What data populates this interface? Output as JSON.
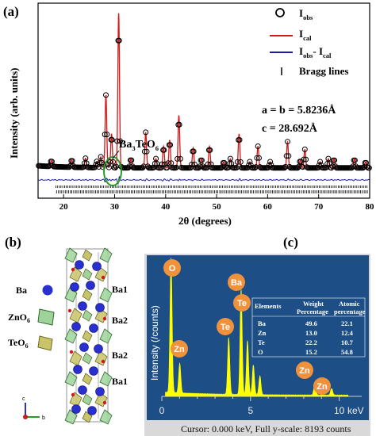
{
  "panels": {
    "a": "(a)",
    "b": "(b)",
    "c": "(c)"
  },
  "colors": {
    "calc": "#d01818",
    "diff": "#1a1aa8",
    "obs": "#000000",
    "edx_bg": "#1d4f86",
    "edx_fill": "#ffff00",
    "badge": "#f0923c"
  },
  "chart_data": [
    {
      "type": "line",
      "xlabel_main": "2θ",
      "xlabel_unit": "(degrees)",
      "ylabel": "Intensity (arb. units)",
      "xlim": [
        15,
        80
      ],
      "xticks": [
        "20",
        "30",
        "40",
        "50",
        "60",
        "70",
        "80"
      ],
      "legend": {
        "obs_main": "I",
        "obs_sub": "obs",
        "cal_main": "I",
        "cal_sub": "cal",
        "diff_main": "I",
        "diff_sub1": "obs",
        "diff_dash": "- I",
        "diff_sub2": "cal",
        "bragg": "Bragg lines"
      },
      "lattice": {
        "ab": "a = b = 5.8236Å",
        "c": "c = 28.692Å"
      },
      "annotation": {
        "base": "Ba",
        "sub1": "3",
        "mid": "TeO",
        "sub2": "6"
      },
      "peaks": [
        {
          "x": 17.6,
          "y": 4
        },
        {
          "x": 21.6,
          "y": 5
        },
        {
          "x": 24.3,
          "y": 6
        },
        {
          "x": 26.5,
          "y": 4
        },
        {
          "x": 27.3,
          "y": 7
        },
        {
          "x": 28.3,
          "y": 47
        },
        {
          "x": 29.4,
          "y": 22
        },
        {
          "x": 30.8,
          "y": 100
        },
        {
          "x": 33.2,
          "y": 6
        },
        {
          "x": 36.1,
          "y": 23
        },
        {
          "x": 38.1,
          "y": 6
        },
        {
          "x": 39.6,
          "y": 14
        },
        {
          "x": 40.8,
          "y": 18
        },
        {
          "x": 42.6,
          "y": 34
        },
        {
          "x": 45.4,
          "y": 13
        },
        {
          "x": 47.0,
          "y": 6
        },
        {
          "x": 48.6,
          "y": 14
        },
        {
          "x": 51.4,
          "y": 4
        },
        {
          "x": 52.7,
          "y": 6
        },
        {
          "x": 54.4,
          "y": 22
        },
        {
          "x": 56.5,
          "y": 4
        },
        {
          "x": 58.1,
          "y": 14
        },
        {
          "x": 60.5,
          "y": 4
        },
        {
          "x": 63.9,
          "y": 17
        },
        {
          "x": 66.4,
          "y": 5
        },
        {
          "x": 67.3,
          "y": 12
        },
        {
          "x": 70.3,
          "y": 4
        },
        {
          "x": 71.9,
          "y": 6
        },
        {
          "x": 73.0,
          "y": 6
        },
        {
          "x": 77.0,
          "y": 6
        },
        {
          "x": 79.2,
          "y": 4
        }
      ]
    },
    {
      "type": "area",
      "ylabel": "Intensity (/counts)",
      "unit": "keV",
      "xlim": [
        0,
        11
      ],
      "xticks": [
        "0",
        "5",
        "10"
      ],
      "cursor": "Cursor: 0.000 keV, Full y-scale: 8193 counts",
      "peaks": [
        {
          "x": 0.52,
          "y": 100
        },
        {
          "x": 1.01,
          "y": 22
        },
        {
          "x": 3.77,
          "y": 42
        },
        {
          "x": 4.47,
          "y": 78
        },
        {
          "x": 4.83,
          "y": 40
        },
        {
          "x": 5.16,
          "y": 22
        },
        {
          "x": 5.53,
          "y": 14
        },
        {
          "x": 8.63,
          "y": 9
        },
        {
          "x": 9.57,
          "y": 5
        }
      ],
      "element_labels": [
        "O",
        "Zn",
        "Te",
        "Ba",
        "Te",
        "Zn",
        "Zn"
      ],
      "table": {
        "headers": [
          "Elements",
          "Weight",
          "Atomic"
        ],
        "headers2": [
          "",
          "Percentage",
          "percentage"
        ],
        "rows": [
          [
            "Ba",
            "49.6",
            "22.1"
          ],
          [
            "Zn",
            "13.0",
            "12.4"
          ],
          [
            "Te",
            "22.2",
            "10.7"
          ],
          [
            "O",
            "15.2",
            "54.8"
          ]
        ]
      }
    }
  ],
  "structure": {
    "legend": {
      "ba": "Ba",
      "zno": "ZnO",
      "zno_sub": "6",
      "teo": "TeO",
      "teo_sub": "6"
    },
    "site_labels": [
      "Ba1",
      "Ba2",
      "Ba2",
      "Ba1"
    ],
    "axes": {
      "c": "c",
      "b": "b"
    }
  }
}
